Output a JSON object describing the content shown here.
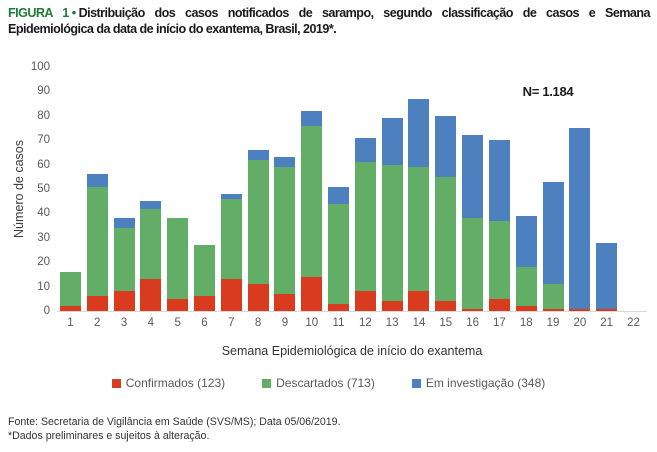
{
  "title": {
    "figure_label": "FIGURA 1",
    "separator": "•",
    "line1": "Distribuição dos casos notificados de sarampo, segundo classificação de casos e Semana",
    "line2": "Epidemiológica da data de início do exantema, Brasil, 2019*."
  },
  "chart_data": {
    "type": "bar",
    "stacked": true,
    "n_label": "N= 1.184",
    "xlabel": "Semana Epidemiológica de início do exantema",
    "ylabel": "Número de casos",
    "ylim": [
      0,
      100
    ],
    "ytick_step": 10,
    "grid": false,
    "legend_position": "bottom",
    "categories": [
      "1",
      "2",
      "3",
      "4",
      "5",
      "6",
      "7",
      "8",
      "9",
      "10",
      "11",
      "12",
      "13",
      "14",
      "15",
      "16",
      "17",
      "18",
      "19",
      "20",
      "21",
      "22"
    ],
    "series": [
      {
        "name": "Confirmados (123)",
        "color": "#d93b1e",
        "total": 123,
        "values": [
          2,
          6,
          8,
          13,
          5,
          6,
          13,
          11,
          7,
          14,
          3,
          8,
          4,
          8,
          4,
          1,
          5,
          2,
          1,
          1,
          1,
          0
        ]
      },
      {
        "name": "Descartados (713)",
        "color": "#63ae66",
        "total": 713,
        "values": [
          14,
          45,
          26,
          29,
          33,
          21,
          33,
          51,
          52,
          62,
          41,
          53,
          56,
          51,
          51,
          37,
          32,
          16,
          10,
          0,
          0,
          0
        ]
      },
      {
        "name": "Em investigação (348)",
        "color": "#4d80bf",
        "total": 348,
        "values": [
          0,
          5,
          4,
          3,
          0,
          0,
          2,
          4,
          4,
          6,
          7,
          10,
          19,
          28,
          25,
          34,
          33,
          21,
          42,
          74,
          27,
          0
        ]
      }
    ]
  },
  "footer": {
    "line1": "Fonte: Secretaria de Vigilância em Saúde (SVS/MS); Data 05/06/2019.",
    "line2": "*Dados preliminares e sujeitos à alteração."
  },
  "colors": {
    "figure_label_green": "#1e7c35",
    "axis_text": "#595959",
    "axis_line": "#d9d9d9",
    "confirmados_red": "#d93b1e",
    "descartados_green": "#63ae66",
    "investigacao_blue": "#4d80bf"
  }
}
